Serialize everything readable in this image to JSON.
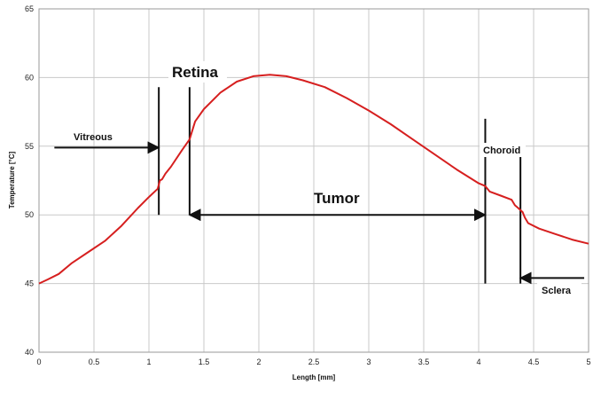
{
  "chart_data": {
    "type": "line",
    "title": "",
    "xlabel": "Length [mm]",
    "ylabel": "Temperature [°C]",
    "xlim": [
      0,
      5
    ],
    "ylim": [
      40,
      65
    ],
    "grid": true,
    "x_ticks": [
      0,
      0.5,
      1,
      1.5,
      2,
      2.5,
      3,
      3.5,
      4,
      4.5,
      5
    ],
    "x_tick_labels": [
      "0",
      "0.5",
      "1",
      "1.5",
      "2",
      "2.5",
      "3",
      "3.5",
      "4",
      "4.5",
      "5"
    ],
    "y_ticks": [
      40,
      45,
      50,
      55,
      60,
      65
    ],
    "y_tick_labels": [
      "40",
      "45",
      "50",
      "55",
      "60",
      "65"
    ],
    "series": [
      {
        "color": "#d61f1f",
        "x": [
          0,
          0.08,
          0.18,
          0.3,
          0.45,
          0.6,
          0.75,
          0.9,
          1.0,
          1.08,
          1.1,
          1.12,
          1.15,
          1.2,
          1.3,
          1.37,
          1.42,
          1.5,
          1.65,
          1.8,
          1.95,
          2.1,
          2.25,
          2.4,
          2.6,
          2.8,
          3.0,
          3.2,
          3.4,
          3.6,
          3.8,
          4.0,
          4.06,
          4.1,
          4.2,
          4.3,
          4.33,
          4.36,
          4.4,
          4.42,
          4.45,
          4.55,
          4.7,
          4.85,
          5.0
        ],
        "y": [
          45.0,
          45.3,
          45.7,
          46.5,
          47.3,
          48.1,
          49.2,
          50.5,
          51.3,
          51.9,
          52.5,
          52.6,
          53.0,
          53.5,
          54.7,
          55.5,
          56.8,
          57.7,
          58.9,
          59.7,
          60.1,
          60.2,
          60.1,
          59.8,
          59.3,
          58.5,
          57.6,
          56.6,
          55.5,
          54.4,
          53.3,
          52.3,
          52.1,
          51.7,
          51.4,
          51.1,
          50.7,
          50.5,
          50.2,
          49.8,
          49.4,
          49.0,
          48.6,
          48.2,
          47.9
        ]
      }
    ],
    "annotations": [
      {
        "label": "Vitreous",
        "size": "small"
      },
      {
        "label": "Retina",
        "size": "large"
      },
      {
        "label": "Tumor",
        "size": "large"
      },
      {
        "label": "Choroid",
        "size": "small"
      },
      {
        "label": "Sclera",
        "size": "small"
      }
    ],
    "markers": [
      {
        "kind": "vline",
        "x": 1.09,
        "y_from": 50.0,
        "y_to": 59.3
      },
      {
        "kind": "vline",
        "x": 1.37,
        "y_from": 50.0,
        "y_to": 59.3
      },
      {
        "kind": "vline",
        "x": 4.06,
        "y_from": 45.0,
        "y_to": 57.0
      },
      {
        "kind": "vline",
        "x": 4.38,
        "y_from": 45.0,
        "y_to": 54.6
      },
      {
        "kind": "arrow",
        "x_from": 0.14,
        "x_to": 1.09,
        "y": 54.9,
        "heads": "end"
      },
      {
        "kind": "arrow",
        "x_from": 1.37,
        "x_to": 4.06,
        "y": 50.0,
        "heads": "both"
      },
      {
        "kind": "arrow",
        "x_from": 4.96,
        "x_to": 4.38,
        "y": 45.4,
        "heads": "end"
      }
    ]
  }
}
